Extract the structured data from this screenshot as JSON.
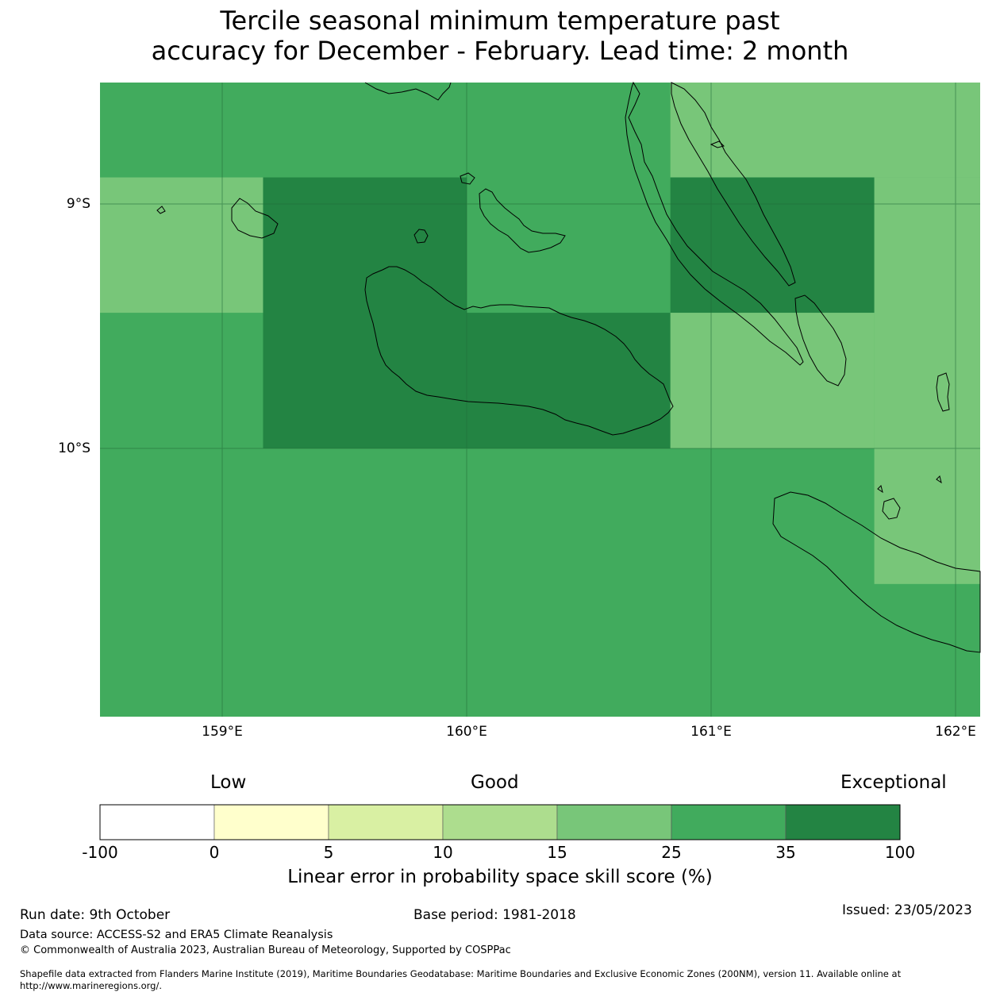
{
  "title": {
    "line1": "Tercile seasonal minimum temperature past",
    "line2": "accuracy for December - February. Lead time: 2 month"
  },
  "map": {
    "lat_labels": [
      "9°S",
      "10°S"
    ],
    "lon_labels": [
      "159°E",
      "160°E",
      "161°E",
      "162°E"
    ],
    "extent": {
      "lon_min": 158.5,
      "lon_max": 162.1,
      "lat_north": -8.5,
      "lat_south": -11.1
    },
    "cells": [
      {
        "lon": [
          158.5,
          162.1
        ],
        "lat": [
          -8.5,
          -11.1
        ],
        "class": "25-35"
      },
      {
        "lon": [
          160.833,
          162.1
        ],
        "lat": [
          -8.5,
          -8.889
        ],
        "class": "15-25"
      },
      {
        "lon": [
          158.5,
          159.167
        ],
        "lat": [
          -8.889,
          -9.444
        ],
        "class": "15-25"
      },
      {
        "lon": [
          159.167,
          160.0
        ],
        "lat": [
          -8.889,
          -10.0
        ],
        "class": "35-100"
      },
      {
        "lon": [
          160.0,
          160.833
        ],
        "lat": [
          -9.444,
          -10.0
        ],
        "class": "35-100"
      },
      {
        "lon": [
          160.833,
          161.667
        ],
        "lat": [
          -8.889,
          -9.444
        ],
        "class": "35-100"
      },
      {
        "lon": [
          161.667,
          162.1
        ],
        "lat": [
          -8.889,
          -10.0
        ],
        "class": "15-25"
      },
      {
        "lon": [
          160.833,
          161.667
        ],
        "lat": [
          -9.444,
          -10.0
        ],
        "class": "15-25"
      },
      {
        "lon": [
          161.667,
          162.1
        ],
        "lat": [
          -10.0,
          -10.556
        ],
        "class": "15-25"
      }
    ]
  },
  "colorbar": {
    "categories": [
      "Low",
      "Good",
      "Exceptional"
    ],
    "ticks": [
      "-100",
      "0",
      "5",
      "10",
      "15",
      "25",
      "35",
      "100"
    ],
    "colors": [
      "#ffffff",
      "#ffffcc",
      "#d9f0a3",
      "#addd8e",
      "#78c679",
      "#41ab5d",
      "#238443"
    ],
    "label": "Linear error in probability space skill score (%)"
  },
  "footer": {
    "run_date": "Run date: 9th October",
    "base_period": "Base period: 1981-2018",
    "issued": "Issued: 23/05/2023",
    "data_source": "Data source: ACCESS-S2 and ERA5 Climate Reanalysis",
    "copyright": "© Commonwealth of Australia 2023, Australian Bureau of Meteorology, Supported by COSPPac",
    "shapefile": "Shapefile data extracted from Flanders Marine Institute (2019), Maritime Boundaries Geodatabase: Maritime Boundaries and Exclusive Economic Zones (200NM), version 11. Available online at http://www.marineregions.org/."
  }
}
